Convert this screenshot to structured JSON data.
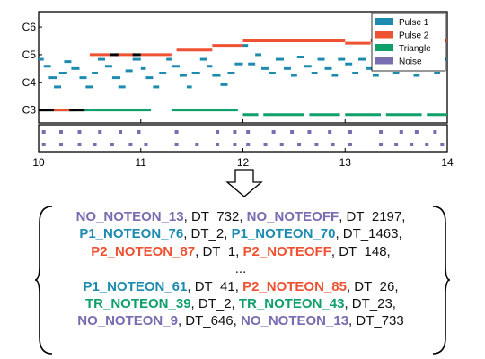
{
  "chart_data": {
    "type": "piano-roll",
    "xlim": [
      10,
      14
    ],
    "xticks": [
      10,
      11,
      12,
      13,
      14
    ],
    "ylim": [
      55,
      92
    ],
    "yticks": [
      {
        "label": "C3",
        "value": 60
      },
      {
        "label": "C4",
        "value": 72
      },
      {
        "label": "C5",
        "value": 84
      },
      {
        "label": "C6",
        "value": 96
      }
    ],
    "colors": {
      "P1": "#1d8bb0",
      "P2": "#ee5233",
      "TR": "#0fa06a",
      "NO": "#7a6cb0"
    },
    "legend": {
      "location": "top-right",
      "entries": [
        {
          "key": "P1",
          "label": "Pulse 1"
        },
        {
          "key": "P2",
          "label": "Pulse 2"
        },
        {
          "key": "TR",
          "label": "Triangle"
        },
        {
          "key": "NO",
          "label": "Noise"
        }
      ]
    },
    "series": {
      "P2": [
        [
          10.0,
          10.1,
          60
        ],
        [
          10.15,
          10.35,
          60
        ],
        [
          10.5,
          10.7,
          84
        ],
        [
          10.75,
          10.95,
          84
        ],
        [
          11.0,
          11.3,
          84
        ],
        [
          11.35,
          11.7,
          86
        ],
        [
          11.7,
          12.0,
          88
        ],
        [
          12.0,
          13.0,
          90
        ],
        [
          13.0,
          13.25,
          89
        ],
        [
          13.25,
          14.0,
          90
        ]
      ],
      "P1": [
        [
          10.0,
          10.05,
          82
        ],
        [
          10.05,
          10.12,
          79
        ],
        [
          10.1,
          10.18,
          74
        ],
        [
          10.15,
          10.22,
          70
        ],
        [
          10.2,
          10.28,
          76
        ],
        [
          10.25,
          10.32,
          81
        ],
        [
          10.32,
          10.4,
          78
        ],
        [
          10.4,
          10.47,
          74
        ],
        [
          10.46,
          10.53,
          70
        ],
        [
          10.52,
          10.58,
          76
        ],
        [
          10.58,
          10.65,
          82
        ],
        [
          10.65,
          10.72,
          79
        ],
        [
          10.72,
          10.8,
          74
        ],
        [
          10.78,
          10.85,
          70
        ],
        [
          10.85,
          10.92,
          77
        ],
        [
          10.92,
          11.0,
          82
        ],
        [
          11.0,
          11.05,
          78
        ],
        [
          11.05,
          11.12,
          74
        ],
        [
          11.12,
          11.18,
          70
        ],
        [
          11.18,
          11.25,
          76
        ],
        [
          11.25,
          11.3,
          82
        ],
        [
          11.3,
          11.38,
          79
        ],
        [
          11.38,
          11.45,
          75
        ],
        [
          11.45,
          11.5,
          70
        ],
        [
          11.5,
          11.58,
          76
        ],
        [
          11.58,
          11.65,
          82
        ],
        [
          11.65,
          11.7,
          79
        ],
        [
          11.7,
          11.78,
          75
        ],
        [
          11.78,
          11.85,
          71
        ],
        [
          11.85,
          11.92,
          76
        ],
        [
          11.92,
          12.0,
          80
        ],
        [
          12.0,
          12.05,
          88
        ],
        [
          12.05,
          12.12,
          80
        ],
        [
          12.12,
          12.18,
          84
        ],
        [
          12.18,
          12.25,
          78
        ],
        [
          12.25,
          12.32,
          76
        ],
        [
          12.32,
          12.4,
          82
        ],
        [
          12.4,
          12.47,
          78
        ],
        [
          12.47,
          12.53,
          75
        ],
        [
          12.53,
          12.6,
          83
        ],
        [
          12.6,
          12.67,
          79
        ],
        [
          12.67,
          12.73,
          76
        ],
        [
          12.73,
          12.8,
          82
        ],
        [
          12.8,
          12.87,
          78
        ],
        [
          12.87,
          12.93,
          75
        ],
        [
          12.93,
          13.0,
          82
        ],
        [
          13.0,
          13.07,
          80
        ],
        [
          13.07,
          13.13,
          76
        ],
        [
          13.13,
          13.2,
          82
        ],
        [
          13.2,
          13.27,
          78
        ],
        [
          13.27,
          13.33,
          75
        ],
        [
          13.33,
          13.4,
          82
        ],
        [
          13.4,
          13.47,
          79
        ],
        [
          13.47,
          13.53,
          76
        ],
        [
          13.53,
          13.6,
          82
        ],
        [
          13.6,
          13.67,
          78
        ],
        [
          13.67,
          13.73,
          75
        ],
        [
          13.73,
          13.8,
          82
        ],
        [
          13.8,
          13.87,
          79
        ],
        [
          13.87,
          13.93,
          76
        ],
        [
          13.93,
          14.0,
          82
        ]
      ],
      "TR": [
        [
          10.0,
          10.13,
          60
        ],
        [
          10.13,
          10.35,
          60
        ],
        [
          10.35,
          10.5,
          60
        ],
        [
          10.5,
          11.1,
          60
        ],
        [
          11.3,
          11.95,
          60
        ],
        [
          12.0,
          12.15,
          58
        ],
        [
          12.2,
          12.6,
          58
        ],
        [
          12.65,
          12.95,
          58
        ],
        [
          13.0,
          13.35,
          58
        ],
        [
          13.4,
          13.75,
          58
        ],
        [
          13.8,
          14.0,
          58
        ]
      ],
      "BLACK": [
        [
          10.0,
          10.15,
          60
        ],
        [
          10.3,
          10.45,
          60
        ],
        [
          10.7,
          10.78,
          84
        ],
        [
          10.92,
          11.0,
          84
        ]
      ],
      "NO_top": [
        10.05,
        10.22,
        10.4,
        10.6,
        10.8,
        10.98,
        11.35,
        11.75,
        11.92,
        12.05,
        12.3,
        12.48,
        12.65,
        12.85,
        13.05,
        13.35,
        13.55,
        13.7,
        13.88
      ],
      "NO_bottom": [
        10.05,
        10.22,
        10.4,
        10.55,
        10.72,
        10.9,
        11.05,
        11.35,
        11.55,
        11.75,
        11.92,
        12.05,
        12.22,
        12.38,
        12.55,
        12.72,
        12.88,
        13.05,
        13.35,
        13.5,
        13.65,
        13.8,
        13.95
      ]
    }
  },
  "tokens": [
    [
      {
        "text": "NO_NOTEON_13",
        "t": "NO"
      },
      {
        "text": ", DT_732, "
      },
      {
        "text": "NO_NOTEOFF",
        "t": "NO"
      },
      {
        "text": ", DT_2197,"
      }
    ],
    [
      {
        "text": "P1_NOTEON_76",
        "t": "P1"
      },
      {
        "text": ", DT_2, "
      },
      {
        "text": "P1_NOTEON_70",
        "t": "P1"
      },
      {
        "text": ", DT_1463,"
      }
    ],
    [
      {
        "text": "P2_NOTEON_87",
        "t": "P2"
      },
      {
        "text": ", DT_1, "
      },
      {
        "text": "P2_NOTEOFF",
        "t": "P2"
      },
      {
        "text": ", DT_148,"
      }
    ],
    [
      {
        "text": "..."
      }
    ],
    [
      {
        "text": "P1_NOTEON_61",
        "t": "P1"
      },
      {
        "text": ", DT_41, "
      },
      {
        "text": "P2_NOTEON_85",
        "t": "P2"
      },
      {
        "text": ", DT_26,"
      }
    ],
    [
      {
        "text": "TR_NOTEON_39",
        "t": "TR"
      },
      {
        "text": ", DT_2, "
      },
      {
        "text": "TR_NOTEON_43",
        "t": "TR"
      },
      {
        "text": ", DT_23,"
      }
    ],
    [
      {
        "text": "NO_NOTEON_9",
        "t": "NO"
      },
      {
        "text": ", DT_646, "
      },
      {
        "text": "NO_NOTEON_13",
        "t": "NO"
      },
      {
        "text": ", DT_733"
      }
    ]
  ]
}
